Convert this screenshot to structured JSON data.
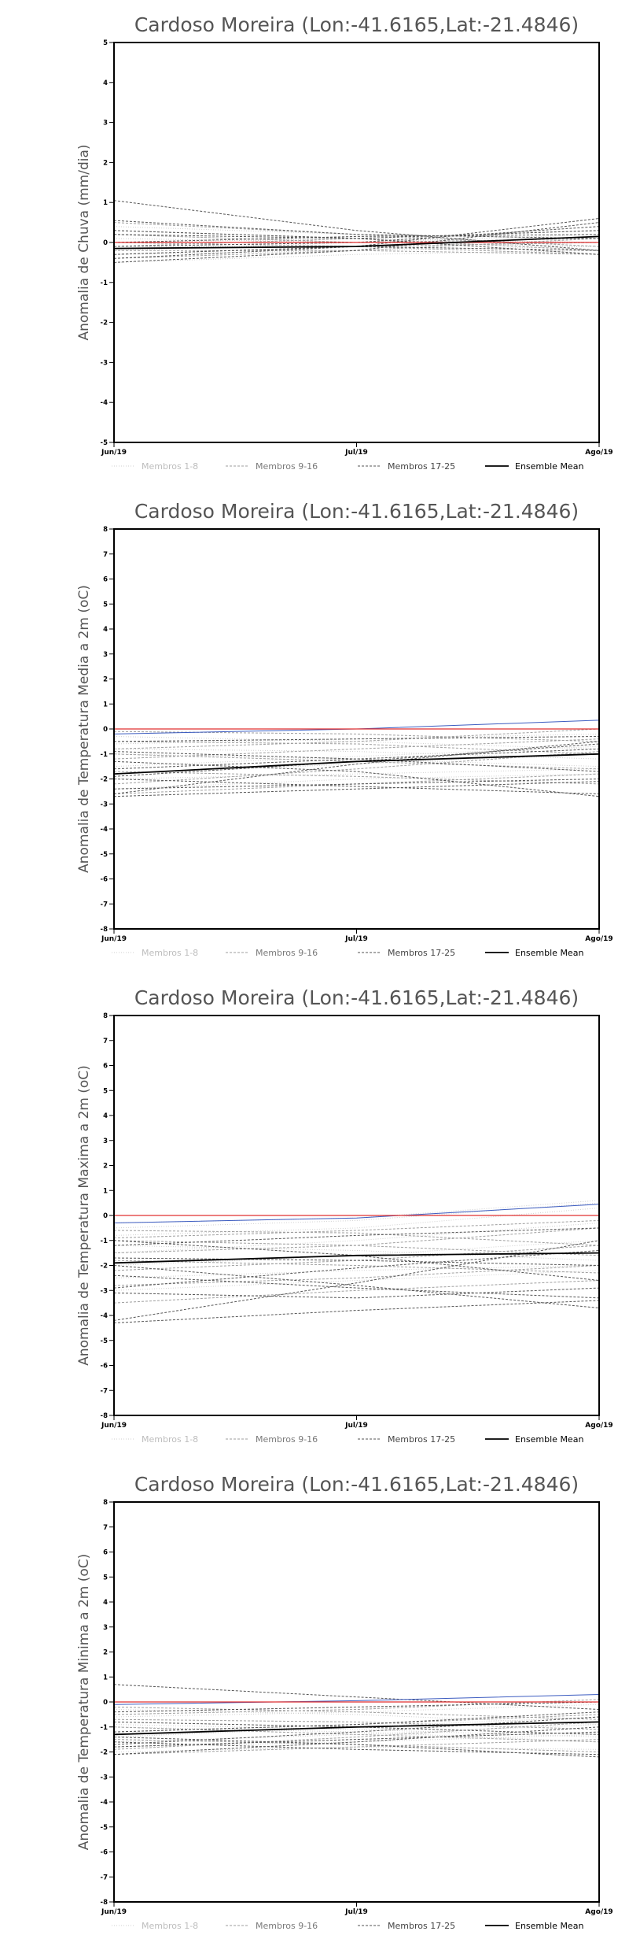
{
  "chart_data": [
    {
      "type": "line",
      "title": "Cardoso Moreira (Lon:-41.6165,Lat:-21.4846)",
      "ylabel": "Anomalia de Chuva (mm/dia)",
      "categories": [
        "Jun/19",
        "Jul/19",
        "Ago/19"
      ],
      "ylim": [
        -5,
        5
      ],
      "yticks": [
        "5",
        "4",
        "3",
        "2",
        "1",
        "0",
        "-1",
        "-2",
        "-3",
        "-4",
        "-5"
      ],
      "legend": [
        "Membros 1-8",
        "Membros 9-16",
        "Membros 17-25",
        "Ensemble Mean"
      ],
      "legend_position": "bottom",
      "colors": {
        "g1": "#cfcfcf",
        "g2": "#9e9e9e",
        "g3": "#555555",
        "mean": "#000000",
        "zero": "#e03030",
        "accent": "#3c5cc0"
      },
      "series": [
        {
          "group": 1,
          "values": [
            0.1,
            0.0,
            -0.1
          ]
        },
        {
          "group": 1,
          "values": [
            -0.1,
            -0.1,
            0.0
          ]
        },
        {
          "group": 1,
          "values": [
            0.2,
            0.0,
            -0.1
          ]
        },
        {
          "group": 1,
          "values": [
            -0.3,
            -0.2,
            -0.1
          ]
        },
        {
          "group": 1,
          "values": [
            0.0,
            0.1,
            0.0
          ]
        },
        {
          "group": 1,
          "values": [
            -0.5,
            -0.3,
            -0.2
          ]
        },
        {
          "group": 1,
          "values": [
            0.4,
            0.2,
            0.1
          ]
        },
        {
          "group": 1,
          "values": [
            -0.2,
            0.0,
            0.2
          ]
        },
        {
          "group": 2,
          "values": [
            0.3,
            0.1,
            -0.2
          ]
        },
        {
          "group": 2,
          "values": [
            -0.4,
            -0.2,
            0.1
          ]
        },
        {
          "group": 2,
          "values": [
            0.0,
            -0.1,
            -0.3
          ]
        },
        {
          "group": 2,
          "values": [
            -0.1,
            0.1,
            0.3
          ]
        },
        {
          "group": 2,
          "values": [
            0.5,
            0.2,
            -0.1
          ]
        },
        {
          "group": 2,
          "values": [
            -0.3,
            -0.1,
            0.0
          ]
        },
        {
          "group": 2,
          "values": [
            0.2,
            0.0,
            0.1
          ]
        },
        {
          "group": 2,
          "values": [
            -0.2,
            -0.2,
            -0.3
          ]
        },
        {
          "group": 3,
          "values": [
            1.05,
            0.3,
            -0.2
          ]
        },
        {
          "group": 3,
          "values": [
            0.55,
            0.2,
            0.1
          ]
        },
        {
          "group": 3,
          "values": [
            -0.3,
            -0.1,
            0.6
          ]
        },
        {
          "group": 3,
          "values": [
            -0.5,
            -0.2,
            0.5
          ]
        },
        {
          "group": 3,
          "values": [
            0.2,
            0.1,
            -0.3
          ]
        },
        {
          "group": 3,
          "values": [
            -0.1,
            0.0,
            0.4
          ]
        },
        {
          "group": 3,
          "values": [
            0.0,
            0.15,
            0.2
          ]
        },
        {
          "group": 3,
          "values": [
            -0.4,
            -0.1,
            -0.2
          ]
        },
        {
          "group": 3,
          "values": [
            0.3,
            0.1,
            0.3
          ]
        },
        {
          "group": 4,
          "values": [
            -0.15,
            -0.1,
            0.15
          ]
        },
        {
          "group": 0,
          "values": [
            0.0,
            0.0,
            0.0
          ]
        }
      ]
    },
    {
      "type": "line",
      "title": "Cardoso Moreira (Lon:-41.6165,Lat:-21.4846)",
      "ylabel": "Anomalia de Temperatura Media a 2m (oC)",
      "categories": [
        "Jun/19",
        "Jul/19",
        "Ago/19"
      ],
      "ylim": [
        -8,
        8
      ],
      "yticks": [
        "8",
        "7",
        "6",
        "5",
        "4",
        "3",
        "2",
        "1",
        "0",
        "-1",
        "-2",
        "-3",
        "-4",
        "-5",
        "-6",
        "-7",
        "-8"
      ],
      "legend": [
        "Membros 1-8",
        "Membros 9-16",
        "Membros 17-25",
        "Ensemble Mean"
      ],
      "legend_position": "bottom",
      "colors": {
        "g1": "#cfcfcf",
        "g2": "#9e9e9e",
        "g3": "#555555",
        "mean": "#000000",
        "zero": "#e03030",
        "accent": "#3c5cc0"
      },
      "series": [
        {
          "group": 1,
          "values": [
            -0.3,
            -0.5,
            -0.8
          ]
        },
        {
          "group": 1,
          "values": [
            -1.0,
            -1.2,
            -1.5
          ]
        },
        {
          "group": 1,
          "values": [
            -2.0,
            -1.8,
            -1.6
          ]
        },
        {
          "group": 1,
          "values": [
            -0.6,
            -0.4,
            -0.2
          ]
        },
        {
          "group": 1,
          "values": [
            -1.5,
            -1.1,
            -0.7
          ]
        },
        {
          "group": 1,
          "values": [
            -2.4,
            -2.0,
            -1.8
          ]
        },
        {
          "group": 1,
          "values": [
            -0.8,
            -0.9,
            -1.2
          ]
        },
        {
          "group": 1,
          "values": [
            -1.8,
            -1.4,
            -1.0
          ]
        },
        {
          "group": 2,
          "values": [
            -0.1,
            -0.2,
            -0.5
          ]
        },
        {
          "group": 2,
          "values": [
            -1.2,
            -0.8,
            -0.4
          ]
        },
        {
          "group": 2,
          "values": [
            -2.6,
            -2.2,
            -1.8
          ]
        },
        {
          "group": 2,
          "values": [
            -0.5,
            -0.6,
            -1.0
          ]
        },
        {
          "group": 2,
          "values": [
            -1.7,
            -1.9,
            -2.2
          ]
        },
        {
          "group": 2,
          "values": [
            -1.0,
            -1.3,
            -1.6
          ]
        },
        {
          "group": 2,
          "values": [
            -2.2,
            -1.6,
            -0.9
          ]
        },
        {
          "group": 2,
          "values": [
            -0.8,
            -0.5,
            0.0
          ]
        },
        {
          "group": 3,
          "values": [
            -2.4,
            -2.2,
            -2.0
          ]
        },
        {
          "group": 3,
          "values": [
            -2.7,
            -2.4,
            -2.1
          ]
        },
        {
          "group": 3,
          "values": [
            -1.3,
            -1.7,
            -2.7
          ]
        },
        {
          "group": 3,
          "values": [
            -1.9,
            -1.3,
            -0.6
          ]
        },
        {
          "group": 3,
          "values": [
            -0.9,
            -1.2,
            -1.7
          ]
        },
        {
          "group": 3,
          "values": [
            -2.0,
            -2.3,
            -2.6
          ]
        },
        {
          "group": 3,
          "values": [
            -1.6,
            -1.2,
            -0.8
          ]
        },
        {
          "group": 3,
          "values": [
            -0.5,
            -0.4,
            -0.3
          ]
        },
        {
          "group": 3,
          "values": [
            -2.6,
            -1.4,
            -0.5
          ]
        },
        {
          "group": 4,
          "values": [
            -1.8,
            -1.3,
            -1.0
          ]
        },
        {
          "group": 5,
          "values": [
            -0.2,
            0.0,
            0.35
          ]
        },
        {
          "group": 0,
          "values": [
            0.0,
            0.0,
            0.0
          ]
        }
      ]
    },
    {
      "type": "line",
      "title": "Cardoso Moreira (Lon:-41.6165,Lat:-21.4846)",
      "ylabel": "Anomalia de Temperatura Maxima a 2m (oC)",
      "categories": [
        "Jun/19",
        "Jul/19",
        "Ago/19"
      ],
      "ylim": [
        -8,
        8
      ],
      "yticks": [
        "8",
        "7",
        "6",
        "5",
        "4",
        "3",
        "2",
        "1",
        "0",
        "-1",
        "-2",
        "-3",
        "-4",
        "-5",
        "-6",
        "-7",
        "-8"
      ],
      "legend": [
        "Membros 1-8",
        "Membros 9-16",
        "Membros 17-25",
        "Ensemble Mean"
      ],
      "legend_position": "bottom",
      "colors": {
        "g1": "#cfcfcf",
        "g2": "#9e9e9e",
        "g3": "#555555",
        "mean": "#000000",
        "zero": "#e03030",
        "accent": "#3c5cc0"
      },
      "series": [
        {
          "group": 1,
          "values": [
            -0.5,
            -0.2,
            0.5
          ]
        },
        {
          "group": 1,
          "values": [
            -1.5,
            -1.0,
            -0.3
          ]
        },
        {
          "group": 1,
          "values": [
            -2.5,
            -2.2,
            -2.0
          ]
        },
        {
          "group": 1,
          "values": [
            -0.8,
            -0.5,
            0.3
          ]
        },
        {
          "group": 1,
          "values": [
            -2.0,
            -1.6,
            -1.0
          ]
        },
        {
          "group": 1,
          "values": [
            -3.0,
            -2.6,
            -2.2
          ]
        },
        {
          "group": 1,
          "values": [
            -1.2,
            -1.4,
            -1.8
          ]
        },
        {
          "group": 1,
          "values": [
            -0.3,
            -0.1,
            0.6
          ]
        },
        {
          "group": 2,
          "values": [
            -1.0,
            -1.2,
            -1.6
          ]
        },
        {
          "group": 2,
          "values": [
            -2.2,
            -1.8,
            -1.2
          ]
        },
        {
          "group": 2,
          "values": [
            -3.5,
            -3.0,
            -2.6
          ]
        },
        {
          "group": 2,
          "values": [
            -0.6,
            -0.7,
            -1.2
          ]
        },
        {
          "group": 2,
          "values": [
            -1.8,
            -2.0,
            -2.3
          ]
        },
        {
          "group": 2,
          "values": [
            -2.8,
            -2.5,
            -2.0
          ]
        },
        {
          "group": 2,
          "values": [
            -1.5,
            -1.2,
            -0.5
          ]
        },
        {
          "group": 2,
          "values": [
            -0.9,
            -0.6,
            -0.2
          ]
        },
        {
          "group": 3,
          "values": [
            -4.2,
            -2.7,
            -1.0
          ]
        },
        {
          "group": 3,
          "values": [
            -4.3,
            -3.8,
            -3.4
          ]
        },
        {
          "group": 3,
          "values": [
            -2.0,
            -2.8,
            -3.7
          ]
        },
        {
          "group": 3,
          "values": [
            -2.4,
            -2.9,
            -3.3
          ]
        },
        {
          "group": 3,
          "values": [
            -1.7,
            -1.8,
            -2.0
          ]
        },
        {
          "group": 3,
          "values": [
            -1.0,
            -1.6,
            -2.6
          ]
        },
        {
          "group": 3,
          "values": [
            -2.9,
            -2.1,
            -1.4
          ]
        },
        {
          "group": 3,
          "values": [
            -1.2,
            -0.8,
            -0.5
          ]
        },
        {
          "group": 3,
          "values": [
            -3.1,
            -3.3,
            -2.9
          ]
        },
        {
          "group": 4,
          "values": [
            -1.9,
            -1.6,
            -1.5
          ]
        },
        {
          "group": 5,
          "values": [
            -0.3,
            -0.1,
            0.45
          ]
        },
        {
          "group": 0,
          "values": [
            0.0,
            0.0,
            0.0
          ]
        }
      ]
    },
    {
      "type": "line",
      "title": "Cardoso Moreira (Lon:-41.6165,Lat:-21.4846)",
      "ylabel": "Anomalia de Temperatura Minima a 2m (oC)",
      "categories": [
        "Jun/19",
        "Jul/19",
        "Ago/19"
      ],
      "ylim": [
        -8,
        8
      ],
      "yticks": [
        "8",
        "7",
        "6",
        "5",
        "4",
        "3",
        "2",
        "1",
        "0",
        "-1",
        "-2",
        "-3",
        "-4",
        "-5",
        "-6",
        "-7",
        "-8"
      ],
      "legend": [
        "Membros 1-8",
        "Membros 9-16",
        "Membros 17-25",
        "Ensemble Mean"
      ],
      "legend_position": "bottom",
      "colors": {
        "g1": "#cfcfcf",
        "g2": "#9e9e9e",
        "g3": "#555555",
        "mean": "#000000",
        "zero": "#e03030",
        "accent": "#3c5cc0"
      },
      "series": [
        {
          "group": 1,
          "values": [
            -0.3,
            -0.5,
            -0.9
          ]
        },
        {
          "group": 1,
          "values": [
            -1.0,
            -1.2,
            -1.6
          ]
        },
        {
          "group": 1,
          "values": [
            -1.8,
            -1.6,
            -1.3
          ]
        },
        {
          "group": 1,
          "values": [
            -0.6,
            -0.4,
            -0.1
          ]
        },
        {
          "group": 1,
          "values": [
            -1.4,
            -1.0,
            -0.6
          ]
        },
        {
          "group": 1,
          "values": [
            -2.0,
            -1.8,
            -1.9
          ]
        },
        {
          "group": 1,
          "values": [
            -0.9,
            -1.1,
            -1.4
          ]
        },
        {
          "group": 1,
          "values": [
            -1.6,
            -1.3,
            -0.9
          ]
        },
        {
          "group": 2,
          "values": [
            -0.2,
            -0.4,
            -0.7
          ]
        },
        {
          "group": 2,
          "values": [
            -1.2,
            -0.9,
            -0.5
          ]
        },
        {
          "group": 2,
          "values": [
            -2.1,
            -1.8,
            -1.5
          ]
        },
        {
          "group": 2,
          "values": [
            -0.7,
            -0.8,
            -1.1
          ]
        },
        {
          "group": 2,
          "values": [
            -1.5,
            -1.7,
            -2.0
          ]
        },
        {
          "group": 2,
          "values": [
            -1.0,
            -1.3,
            -1.6
          ]
        },
        {
          "group": 2,
          "values": [
            -1.9,
            -1.4,
            -0.8
          ]
        },
        {
          "group": 2,
          "values": [
            -0.5,
            -0.3,
            0.1
          ]
        },
        {
          "group": 3,
          "values": [
            0.7,
            0.2,
            -0.3
          ]
        },
        {
          "group": 3,
          "values": [
            -1.8,
            -1.5,
            -1.2
          ]
        },
        {
          "group": 3,
          "values": [
            -1.4,
            -1.7,
            -2.2
          ]
        },
        {
          "group": 3,
          "values": [
            -2.1,
            -1.6,
            -1.0
          ]
        },
        {
          "group": 3,
          "values": [
            -0.8,
            -1.0,
            -1.3
          ]
        },
        {
          "group": 3,
          "values": [
            -1.2,
            -0.9,
            -0.4
          ]
        },
        {
          "group": 3,
          "values": [
            -1.6,
            -1.9,
            -2.1
          ]
        },
        {
          "group": 3,
          "values": [
            -0.4,
            -0.2,
            0.0
          ]
        },
        {
          "group": 3,
          "values": [
            -1.7,
            -1.2,
            -0.6
          ]
        },
        {
          "group": 4,
          "values": [
            -1.3,
            -1.0,
            -0.8
          ]
        },
        {
          "group": 5,
          "values": [
            -0.1,
            0.05,
            0.3
          ]
        },
        {
          "group": 0,
          "values": [
            0.0,
            0.0,
            0.0
          ]
        }
      ]
    }
  ]
}
